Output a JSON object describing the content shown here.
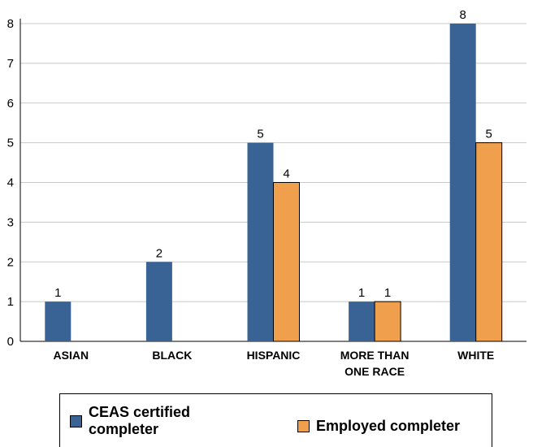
{
  "chart_data": {
    "type": "bar",
    "categories": [
      [
        "ASIAN"
      ],
      [
        "BLACK"
      ],
      [
        "HISPANIC"
      ],
      [
        "MORE THAN",
        "ONE RACE"
      ],
      [
        "WHITE"
      ]
    ],
    "series": [
      {
        "name": "CEAS certified completer",
        "values": [
          1,
          2,
          5,
          1,
          8
        ],
        "color": "#3a6395"
      },
      {
        "name": "Employed completer",
        "values": [
          null,
          null,
          4,
          1,
          5
        ],
        "color": "#f0a04d"
      }
    ],
    "ylim": [
      0,
      8
    ],
    "yticks": [
      0,
      1,
      2,
      3,
      4,
      5,
      6,
      7,
      8
    ],
    "grid": true,
    "legend_position": "bottom",
    "title": "",
    "xlabel": "",
    "ylabel": ""
  },
  "legend": {
    "series0_label_line1": "CEAS certified",
    "series0_label_line2": "completer",
    "series1_label": "Employed completer"
  }
}
